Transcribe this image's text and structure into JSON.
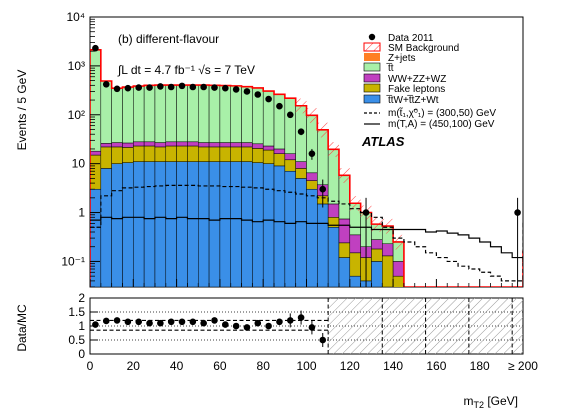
{
  "chart_data": {
    "type": "bar",
    "title": "(b) different-flavour",
    "subtitle": "∫L dt = 4.7 fb⁻¹  √s = 7 TeV",
    "experiment": "ATLAS",
    "xlabel": "m_T2 [GeV]",
    "ylabel": "Events / 5 GeV",
    "ratio_ylabel": "Data/MC",
    "xlim": [
      0,
      200
    ],
    "ylim": [
      0.03,
      10000
    ],
    "yscale": "log",
    "ratio_ylim": [
      0,
      2
    ],
    "bin_width": 5,
    "x_ticks": [
      "0",
      "20",
      "40",
      "60",
      "80",
      "100",
      "120",
      "140",
      "160",
      "180",
      "≥ 200"
    ],
    "y_ticks": [
      "10⁻¹",
      "1",
      "10",
      "10²",
      "10³",
      "10⁴"
    ],
    "ratio_ticks": [
      "0",
      "0.5",
      "1",
      "1.5",
      "2"
    ],
    "legend_position": "top-right",
    "legend": {
      "data": "Data 2011",
      "sm": "SM Background",
      "zjets": "Z+jets",
      "tt": "t̅t",
      "diboson": "WW+ZZ+WZ",
      "fake": "Fake leptons",
      "ttv": "t̅tW+t̅tZ+Wt",
      "sig1": "m(t̃₁,χ̃⁰₁) = (300,50) GeV",
      "sig2": "m(T,A) = (450,100) GeV"
    },
    "colors": {
      "zjets": "#ff7f24",
      "tt": "#a8f0a8",
      "diboson": "#c040c0",
      "fake": "#c8b400",
      "ttv": "#3a8fe8",
      "sm": "#ff0000"
    },
    "stack": {
      "ttv": [
        3,
        8,
        10,
        10.5,
        11,
        11,
        11,
        11,
        11,
        11,
        11,
        11,
        11,
        11,
        11,
        10.5,
        10,
        9,
        7,
        5,
        3,
        1.5,
        0.5,
        0.12,
        0.05,
        0.04,
        0.1,
        0.03,
        0.02,
        0,
        0,
        0,
        0,
        0,
        0,
        0,
        0,
        0,
        0,
        0,
        0.03
      ],
      "fake": [
        12,
        14,
        12,
        11,
        12,
        12,
        11,
        12,
        12,
        12,
        11,
        11,
        11,
        11,
        11,
        10,
        9,
        7,
        5,
        3,
        1.5,
        0.7,
        0.3,
        0.12,
        0.1,
        0.08,
        0.08,
        0.1,
        0.03,
        0,
        0,
        0,
        0,
        0,
        0,
        0,
        0,
        0,
        0,
        0,
        0.05
      ],
      "diboson": [
        3,
        4,
        5,
        5,
        5,
        5,
        5,
        5,
        5,
        5,
        5,
        5,
        5,
        5,
        5,
        5,
        4,
        4,
        4,
        3,
        2,
        1.5,
        0.7,
        0.5,
        0.2,
        0.08,
        0.1,
        0.1,
        0.05,
        0,
        0,
        0,
        0,
        0,
        0,
        0,
        0,
        0,
        0,
        0,
        0.03
      ],
      "tt": [
        2100,
        460,
        320,
        340,
        355,
        370,
        375,
        375,
        375,
        375,
        375,
        370,
        365,
        360,
        345,
        325,
        280,
        240,
        200,
        140,
        90,
        45,
        18,
        5,
        1.2,
        0.8,
        0.3,
        0.3,
        0.15,
        0,
        0,
        0,
        0,
        0,
        0,
        0,
        0,
        0,
        0,
        0,
        0.05
      ],
      "zjets": [
        10,
        5,
        3,
        3,
        3,
        3,
        3,
        3,
        3,
        3,
        3,
        3,
        3,
        3,
        3,
        3,
        3,
        2,
        2,
        2,
        1,
        0.5,
        0.2,
        0.05,
        0,
        0,
        0,
        0,
        0,
        0,
        0,
        0,
        0,
        0,
        0,
        0,
        0,
        0,
        0,
        0,
        0
      ]
    },
    "data_points": {
      "x": [
        2.5,
        7.5,
        12.5,
        17.5,
        22.5,
        27.5,
        32.5,
        37.5,
        42.5,
        47.5,
        52.5,
        57.5,
        62.5,
        67.5,
        72.5,
        77.5,
        82.5,
        87.5,
        92.5,
        97.5,
        102.5,
        107.5,
        127.5,
        197.5
      ],
      "y": [
        2300,
        420,
        340,
        350,
        360,
        360,
        380,
        370,
        390,
        370,
        370,
        360,
        350,
        330,
        300,
        260,
        210,
        150,
        100,
        45,
        16,
        3,
        1,
        1
      ],
      "ratio": [
        1.05,
        1.18,
        1.2,
        1.15,
        1.15,
        1.1,
        1.1,
        1.15,
        1.15,
        1.15,
        1.1,
        1.2,
        1.05,
        1.0,
        0.95,
        1.1,
        1.0,
        1.15,
        1.2,
        1.3,
        0.95,
        0.5
      ]
    },
    "signal_1": [
      0.5,
      2.2,
      2.8,
      3.2,
      3.3,
      3.4,
      3.5,
      3.6,
      3.6,
      3.6,
      3.5,
      3.5,
      3.4,
      3.4,
      3.3,
      3.2,
      3.0,
      2.8,
      2.6,
      2.4,
      2.2,
      2.0,
      1.7,
      1.5,
      1.2,
      1.0,
      0.8,
      0.5,
      0.3,
      0.25,
      0.2,
      0.15,
      0.12,
      0.1,
      0.08,
      0.07,
      0.06,
      0.05,
      0.04,
      0.04,
      0.6
    ],
    "signal_2": [
      0.7,
      0.8,
      0.75,
      0.8,
      0.8,
      0.75,
      0.8,
      0.75,
      0.8,
      0.75,
      0.75,
      0.7,
      0.75,
      0.75,
      0.7,
      0.65,
      0.7,
      0.65,
      0.6,
      0.65,
      0.6,
      0.6,
      0.55,
      0.55,
      0.5,
      0.5,
      0.45,
      0.45,
      0.45,
      0.45,
      0.45,
      0.4,
      0.42,
      0.38,
      0.35,
      0.3,
      0.25,
      0.2,
      0.15,
      0.12,
      0.1
    ]
  }
}
